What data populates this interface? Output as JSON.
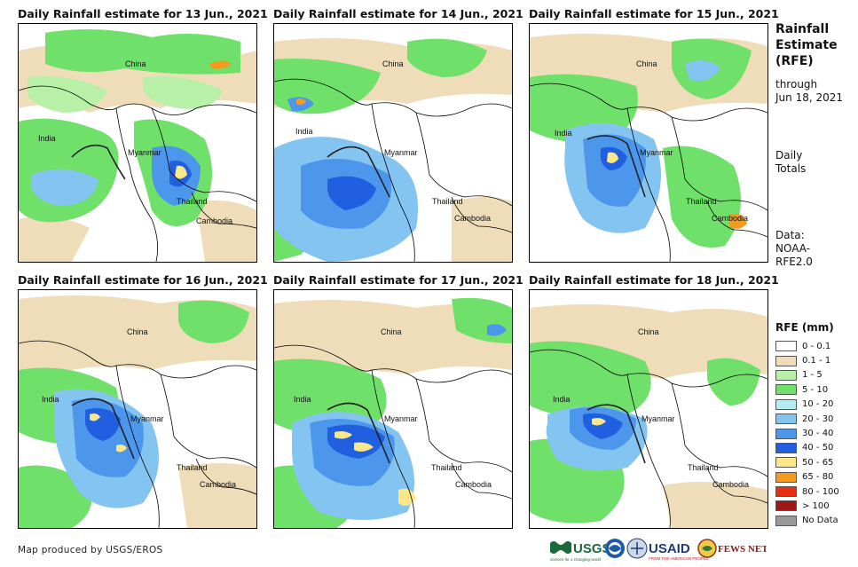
{
  "panels": [
    {
      "title": "Daily Rainfall estimate for 13 Jun., 2021",
      "labels": [
        "China",
        "India",
        "Myanmar",
        "Thailand",
        "Cambodia"
      ]
    },
    {
      "title": "Daily Rainfall estimate for 14 Jun., 2021",
      "labels": [
        "China",
        "India",
        "Myanmar",
        "Thailand",
        "Cambodia"
      ]
    },
    {
      "title": "Daily Rainfall estimate for 15 Jun., 2021",
      "labels": [
        "China",
        "India",
        "Myanmar",
        "Thailand",
        "Cambodia"
      ]
    },
    {
      "title": "Daily Rainfall estimate for 16 Jun., 2021",
      "labels": [
        "China",
        "India",
        "Myanmar",
        "Thailand",
        "Cambodia"
      ]
    },
    {
      "title": "Daily Rainfall estimate for 17 Jun., 2021",
      "labels": [
        "China",
        "India",
        "Myanmar",
        "Thailand",
        "Cambodia"
      ]
    },
    {
      "title": "Daily Rainfall estimate for 18 Jun., 2021",
      "labels": [
        "China",
        "India",
        "Myanmar",
        "Thailand",
        "Cambodia"
      ]
    }
  ],
  "sidebar": {
    "title_line1": "Rainfall",
    "title_line2": "Estimate",
    "title_line3": "(RFE)",
    "through": "through",
    "date": "Jun 18, 2021",
    "daily": "Daily",
    "totals": "Totals",
    "data": "Data:",
    "noaa": "NOAA-",
    "rfe": "RFE2.0"
  },
  "legend": {
    "title": "RFE (mm)",
    "items": [
      {
        "label": "0 - 0.1",
        "color": "#ffffff"
      },
      {
        "label": "0.1 - 1",
        "color": "#efdcb8"
      },
      {
        "label": "1 - 5",
        "color": "#b8f0a8"
      },
      {
        "label": "5 - 10",
        "color": "#6fe06a"
      },
      {
        "label": "10 - 20",
        "color": "#b4ecf4"
      },
      {
        "label": "20 - 30",
        "color": "#84c4f0"
      },
      {
        "label": "30 - 40",
        "color": "#4c96ec"
      },
      {
        "label": "40 - 50",
        "color": "#2060e0"
      },
      {
        "label": "50 - 65",
        "color": "#fce888"
      },
      {
        "label": "65 - 80",
        "color": "#f49a1c"
      },
      {
        "label": "80 - 100",
        "color": "#e83010"
      },
      {
        "label": "> 100",
        "color": "#a01818"
      },
      {
        "label": "No Data",
        "color": "#999999"
      }
    ]
  },
  "footer": {
    "credit": "Map produced by USGS/EROS"
  },
  "logos": {
    "usgs": "USGS",
    "usgs_tag": "science for a changing world",
    "usaid": "USAID",
    "usaid_tag": "FROM THE AMERICAN PEOPLE",
    "fewsnet": "FEWS NET"
  }
}
